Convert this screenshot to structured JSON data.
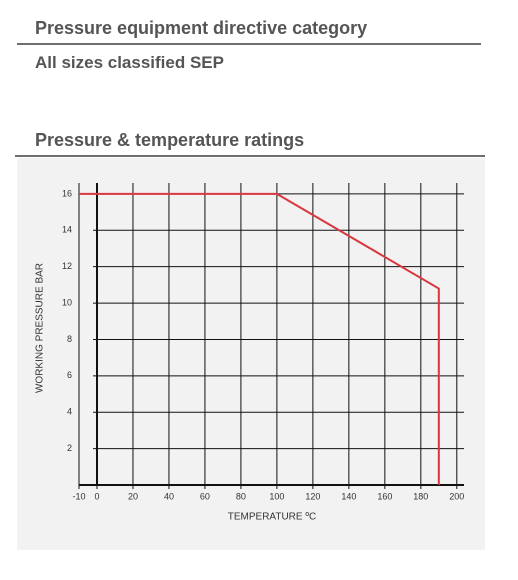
{
  "heading_directive": "Pressure equipment directive category",
  "directive_text": "All sizes classified SEP",
  "heading_ratings": "Pressure & temperature ratings",
  "chart_data": {
    "type": "line",
    "xlabel": "TEMPERATURE ºC",
    "ylabel": "WORKING PRESSURE BAR",
    "x": [
      -10,
      100,
      190,
      190
    ],
    "values": [
      16,
      16,
      10.8,
      0
    ],
    "color": "#d9363e",
    "xlim": [
      -10,
      204
    ],
    "ylim": [
      0,
      16.6
    ],
    "xticks": [
      -10,
      0,
      20,
      40,
      60,
      80,
      100,
      120,
      140,
      160,
      180,
      200
    ],
    "yticks": [
      2,
      4,
      6,
      8,
      10,
      12,
      14,
      16
    ],
    "grid": true
  }
}
